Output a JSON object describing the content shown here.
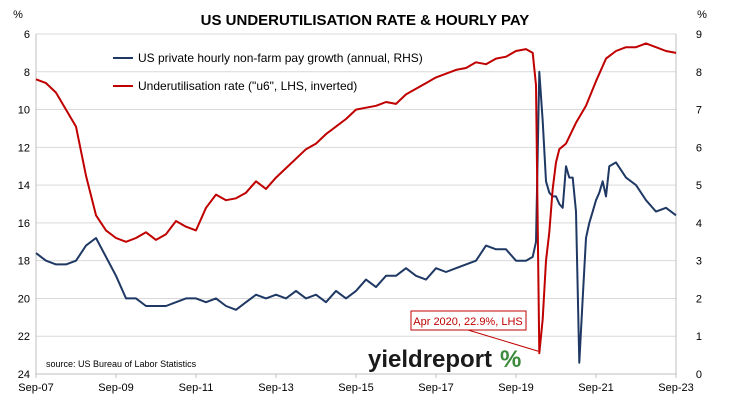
{
  "chart_data": {
    "type": "line",
    "title": "US UNDERUTILISATION RATE & HOURLY PAY",
    "x_tick_labels": [
      "Sep-07",
      "Sep-09",
      "Sep-11",
      "Sep-13",
      "Sep-15",
      "Sep-17",
      "Sep-19",
      "Sep-21",
      "Sep-23"
    ],
    "x_range": [
      "2007-09",
      "2023-09"
    ],
    "left_axis": {
      "unit": "%",
      "inverted": true,
      "range": [
        6,
        24
      ],
      "ticks": [
        "6",
        "8",
        "10",
        "12",
        "14",
        "16",
        "18",
        "20",
        "22",
        "24"
      ]
    },
    "right_axis": {
      "unit": "%",
      "range": [
        0,
        9
      ],
      "ticks": [
        "9",
        "8",
        "7",
        "6",
        "5",
        "4",
        "3",
        "2",
        "1",
        "0"
      ]
    },
    "gridlines": "horizontal",
    "legend_position": "top-left",
    "series": [
      {
        "name": "US private hourly non-farm pay growth (annual, RHS)",
        "axis": "right",
        "color": "#1f3864",
        "points": [
          [
            "2007-09",
            3.2
          ],
          [
            "2007-12",
            3.0
          ],
          [
            "2008-03",
            2.9
          ],
          [
            "2008-06",
            2.9
          ],
          [
            "2008-09",
            3.0
          ],
          [
            "2008-12",
            3.4
          ],
          [
            "2009-03",
            3.6
          ],
          [
            "2009-06",
            3.1
          ],
          [
            "2009-09",
            2.6
          ],
          [
            "2009-12",
            2.0
          ],
          [
            "2010-03",
            2.0
          ],
          [
            "2010-06",
            1.8
          ],
          [
            "2010-09",
            1.8
          ],
          [
            "2010-12",
            1.8
          ],
          [
            "2011-03",
            1.9
          ],
          [
            "2011-06",
            2.0
          ],
          [
            "2011-09",
            2.0
          ],
          [
            "2011-12",
            1.9
          ],
          [
            "2012-03",
            2.0
          ],
          [
            "2012-06",
            1.8
          ],
          [
            "2012-09",
            1.7
          ],
          [
            "2012-12",
            1.9
          ],
          [
            "2013-03",
            2.1
          ],
          [
            "2013-06",
            2.0
          ],
          [
            "2013-09",
            2.1
          ],
          [
            "2013-12",
            2.0
          ],
          [
            "2014-03",
            2.2
          ],
          [
            "2014-06",
            2.0
          ],
          [
            "2014-09",
            2.1
          ],
          [
            "2014-12",
            1.9
          ],
          [
            "2015-03",
            2.2
          ],
          [
            "2015-06",
            2.0
          ],
          [
            "2015-09",
            2.2
          ],
          [
            "2015-12",
            2.5
          ],
          [
            "2016-03",
            2.3
          ],
          [
            "2016-06",
            2.6
          ],
          [
            "2016-09",
            2.6
          ],
          [
            "2016-12",
            2.8
          ],
          [
            "2017-03",
            2.6
          ],
          [
            "2017-06",
            2.5
          ],
          [
            "2017-09",
            2.8
          ],
          [
            "2017-12",
            2.7
          ],
          [
            "2018-03",
            2.8
          ],
          [
            "2018-06",
            2.9
          ],
          [
            "2018-09",
            3.0
          ],
          [
            "2018-12",
            3.4
          ],
          [
            "2019-03",
            3.3
          ],
          [
            "2019-06",
            3.3
          ],
          [
            "2019-09",
            3.0
          ],
          [
            "2019-12",
            3.0
          ],
          [
            "2020-02",
            3.1
          ],
          [
            "2020-03",
            3.5
          ],
          [
            "2020-04",
            8.0
          ],
          [
            "2020-05",
            6.7
          ],
          [
            "2020-06",
            5.1
          ],
          [
            "2020-07",
            4.8
          ],
          [
            "2020-08",
            4.7
          ],
          [
            "2020-09",
            4.7
          ],
          [
            "2020-10",
            4.5
          ],
          [
            "2020-11",
            4.4
          ],
          [
            "2020-12",
            5.5
          ],
          [
            "2021-01",
            5.2
          ],
          [
            "2021-02",
            5.2
          ],
          [
            "2021-03",
            4.3
          ],
          [
            "2021-04",
            0.3
          ],
          [
            "2021-05",
            2.0
          ],
          [
            "2021-06",
            3.6
          ],
          [
            "2021-07",
            4.0
          ],
          [
            "2021-08",
            4.3
          ],
          [
            "2021-09",
            4.6
          ],
          [
            "2021-10",
            4.8
          ],
          [
            "2021-11",
            5.1
          ],
          [
            "2021-12",
            4.7
          ],
          [
            "2022-01",
            5.5
          ],
          [
            "2022-03",
            5.6
          ],
          [
            "2022-06",
            5.2
          ],
          [
            "2022-09",
            5.0
          ],
          [
            "2022-12",
            4.6
          ],
          [
            "2023-03",
            4.3
          ],
          [
            "2023-06",
            4.4
          ],
          [
            "2023-09",
            4.2
          ]
        ]
      },
      {
        "name": "Underutilisation rate (\"u6\", LHS, inverted)",
        "axis": "left",
        "color": "#c00000",
        "points": [
          [
            "2007-09",
            8.4
          ],
          [
            "2007-12",
            8.6
          ],
          [
            "2008-03",
            9.1
          ],
          [
            "2008-06",
            10.0
          ],
          [
            "2008-09",
            10.9
          ],
          [
            "2008-12",
            13.5
          ],
          [
            "2009-03",
            15.6
          ],
          [
            "2009-06",
            16.4
          ],
          [
            "2009-09",
            16.8
          ],
          [
            "2009-12",
            17.0
          ],
          [
            "2010-03",
            16.8
          ],
          [
            "2010-06",
            16.5
          ],
          [
            "2010-09",
            16.9
          ],
          [
            "2010-12",
            16.6
          ],
          [
            "2011-03",
            15.9
          ],
          [
            "2011-06",
            16.2
          ],
          [
            "2011-09",
            16.4
          ],
          [
            "2011-12",
            15.2
          ],
          [
            "2012-03",
            14.5
          ],
          [
            "2012-06",
            14.8
          ],
          [
            "2012-09",
            14.7
          ],
          [
            "2012-12",
            14.4
          ],
          [
            "2013-03",
            13.8
          ],
          [
            "2013-06",
            14.2
          ],
          [
            "2013-09",
            13.6
          ],
          [
            "2013-12",
            13.1
          ],
          [
            "2014-03",
            12.6
          ],
          [
            "2014-06",
            12.1
          ],
          [
            "2014-09",
            11.8
          ],
          [
            "2014-12",
            11.3
          ],
          [
            "2015-03",
            10.9
          ],
          [
            "2015-06",
            10.5
          ],
          [
            "2015-09",
            10.0
          ],
          [
            "2015-12",
            9.9
          ],
          [
            "2016-03",
            9.8
          ],
          [
            "2016-06",
            9.6
          ],
          [
            "2016-09",
            9.7
          ],
          [
            "2016-12",
            9.2
          ],
          [
            "2017-03",
            8.9
          ],
          [
            "2017-06",
            8.6
          ],
          [
            "2017-09",
            8.3
          ],
          [
            "2017-12",
            8.1
          ],
          [
            "2018-03",
            7.9
          ],
          [
            "2018-06",
            7.8
          ],
          [
            "2018-09",
            7.5
          ],
          [
            "2018-12",
            7.6
          ],
          [
            "2019-03",
            7.3
          ],
          [
            "2019-06",
            7.2
          ],
          [
            "2019-09",
            6.9
          ],
          [
            "2019-12",
            6.8
          ],
          [
            "2020-02",
            7.0
          ],
          [
            "2020-03",
            8.7
          ],
          [
            "2020-04",
            22.9
          ],
          [
            "2020-05",
            21.1
          ],
          [
            "2020-06",
            18.0
          ],
          [
            "2020-07",
            16.5
          ],
          [
            "2020-08",
            14.2
          ],
          [
            "2020-09",
            12.8
          ],
          [
            "2020-10",
            12.1
          ],
          [
            "2020-12",
            11.8
          ],
          [
            "2021-03",
            10.7
          ],
          [
            "2021-06",
            9.8
          ],
          [
            "2021-09",
            8.5
          ],
          [
            "2021-12",
            7.3
          ],
          [
            "2022-03",
            6.9
          ],
          [
            "2022-06",
            6.7
          ],
          [
            "2022-09",
            6.7
          ],
          [
            "2022-12",
            6.5
          ],
          [
            "2023-03",
            6.7
          ],
          [
            "2023-06",
            6.9
          ],
          [
            "2023-09",
            7.0
          ]
        ]
      }
    ],
    "annotation": {
      "text": "Apr 2020, 22.9%, LHS",
      "x": "2020-04",
      "y": 22.9
    },
    "source": "source: US Bureau of Labor Statistics",
    "brand": {
      "name": "yieldreport",
      "mark": "%"
    }
  }
}
